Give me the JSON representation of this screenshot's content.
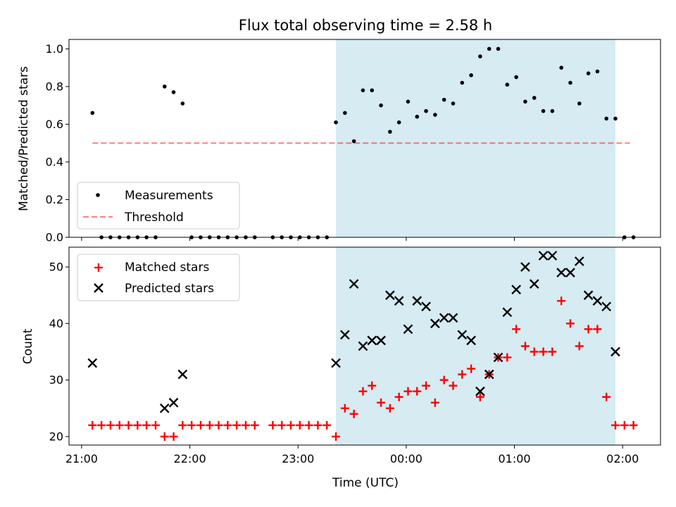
{
  "chart_data": [
    {
      "type": "scatter",
      "title": "Flux total observing time = 2.58 h",
      "xlabel": "",
      "ylabel": "Matched/Predicted stars",
      "xlim": [
        "20:53",
        "02:21"
      ],
      "ylim": [
        0.0,
        1.05
      ],
      "yticks": [
        "0.0",
        "0.2",
        "0.4",
        "0.6",
        "0.8",
        "1.0"
      ],
      "highlight_span": [
        "23:21",
        "01:56"
      ],
      "threshold": 0.5,
      "threshold_x": [
        "21:06",
        "02:04"
      ],
      "legend": {
        "placement": "lower-left",
        "entries": [
          "Measurements",
          "Threshold"
        ]
      },
      "series": [
        {
          "name": "Measurements",
          "x": [
            "21:06",
            "21:11",
            "21:16",
            "21:21",
            "21:26",
            "21:31",
            "21:36",
            "21:41",
            "21:46",
            "21:51",
            "21:56",
            "22:01",
            "22:06",
            "22:11",
            "22:16",
            "22:21",
            "22:26",
            "22:31",
            "22:36",
            "22:46",
            "22:51",
            "22:56",
            "23:01",
            "23:06",
            "23:11",
            "23:16",
            "23:21",
            "23:26",
            "23:31",
            "23:36",
            "23:41",
            "23:46",
            "23:51",
            "23:56",
            "24:01",
            "24:06",
            "24:11",
            "24:16",
            "24:21",
            "24:26",
            "24:31",
            "24:36",
            "24:41",
            "24:46",
            "24:51",
            "24:56",
            "25:01",
            "25:06",
            "25:11",
            "25:16",
            "25:21",
            "25:26",
            "25:31",
            "25:36",
            "25:41",
            "25:46",
            "25:51",
            "25:56",
            "26:01",
            "26:06"
          ],
          "y": [
            0.66,
            0.0,
            0.0,
            0.0,
            0.0,
            0.0,
            0.0,
            0.0,
            0.8,
            0.77,
            0.71,
            0.0,
            0.0,
            0.0,
            0.0,
            0.0,
            0.0,
            0.0,
            0.0,
            0.0,
            0.0,
            0.0,
            0.0,
            0.0,
            0.0,
            0.0,
            0.61,
            0.66,
            0.51,
            0.78,
            0.78,
            0.7,
            0.56,
            0.61,
            0.72,
            0.64,
            0.67,
            0.65,
            0.73,
            0.71,
            0.82,
            0.86,
            0.96,
            1.0,
            1.0,
            0.81,
            0.85,
            0.72,
            0.74,
            0.67,
            0.67,
            0.9,
            0.82,
            0.71,
            0.87,
            0.88,
            0.63,
            0.63,
            0.0,
            0.0
          ]
        }
      ]
    },
    {
      "type": "scatter",
      "title": "",
      "xlabel": "Time (UTC)",
      "ylabel": "Count",
      "xlim": [
        "20:53",
        "02:21"
      ],
      "ylim": [
        18.5,
        53.5
      ],
      "yticks": [
        "20",
        "30",
        "40",
        "50"
      ],
      "xticks": [
        "21:00",
        "22:00",
        "23:00",
        "00:00",
        "01:00",
        "02:00"
      ],
      "highlight_span": [
        "23:21",
        "01:56"
      ],
      "legend": {
        "placement": "top-left",
        "entries": [
          "Matched stars",
          "Predicted stars"
        ]
      },
      "series": [
        {
          "name": "Matched stars",
          "x": [
            "21:06",
            "21:11",
            "21:16",
            "21:21",
            "21:26",
            "21:31",
            "21:36",
            "21:41",
            "21:46",
            "21:51",
            "21:56",
            "22:01",
            "22:06",
            "22:11",
            "22:16",
            "22:21",
            "22:26",
            "22:31",
            "22:36",
            "22:46",
            "22:51",
            "22:56",
            "23:01",
            "23:06",
            "23:11",
            "23:16",
            "23:21",
            "23:26",
            "23:31",
            "23:36",
            "23:41",
            "23:46",
            "23:51",
            "23:56",
            "24:01",
            "24:06",
            "24:11",
            "24:16",
            "24:21",
            "24:26",
            "24:31",
            "24:36",
            "24:41",
            "24:46",
            "24:51",
            "24:56",
            "25:01",
            "25:06",
            "25:11",
            "25:16",
            "25:21",
            "25:26",
            "25:31",
            "25:36",
            "25:41",
            "25:46",
            "25:51",
            "25:56",
            "26:01",
            "26:06"
          ],
          "y": [
            22,
            22,
            22,
            22,
            22,
            22,
            22,
            22,
            20,
            20,
            22,
            22,
            22,
            22,
            22,
            22,
            22,
            22,
            22,
            22,
            22,
            22,
            22,
            22,
            22,
            22,
            20,
            25,
            24,
            28,
            29,
            26,
            25,
            27,
            28,
            28,
            29,
            26,
            30,
            29,
            31,
            32,
            27,
            31,
            34,
            34,
            39,
            36,
            35,
            35,
            35,
            44,
            40,
            36,
            39,
            39,
            27,
            22,
            22,
            22
          ]
        },
        {
          "name": "Predicted stars",
          "x": [
            "21:06",
            "21:46",
            "21:51",
            "21:56",
            "23:21",
            "23:26",
            "23:31",
            "23:36",
            "23:41",
            "23:46",
            "23:51",
            "23:56",
            "24:01",
            "24:06",
            "24:11",
            "24:16",
            "24:21",
            "24:26",
            "24:31",
            "24:36",
            "24:41",
            "24:46",
            "24:51",
            "24:56",
            "25:01",
            "25:06",
            "25:11",
            "25:16",
            "25:21",
            "25:26",
            "25:31",
            "25:36",
            "25:41",
            "25:46",
            "25:51",
            "25:56"
          ],
          "y": [
            33,
            25,
            26,
            31,
            33,
            38,
            47,
            36,
            37,
            37,
            45,
            44,
            39,
            44,
            43,
            40,
            41,
            41,
            38,
            37,
            28,
            31,
            34,
            42,
            46,
            50,
            47,
            52,
            52,
            49,
            49,
            51,
            45,
            44,
            43,
            35
          ]
        }
      ]
    }
  ]
}
